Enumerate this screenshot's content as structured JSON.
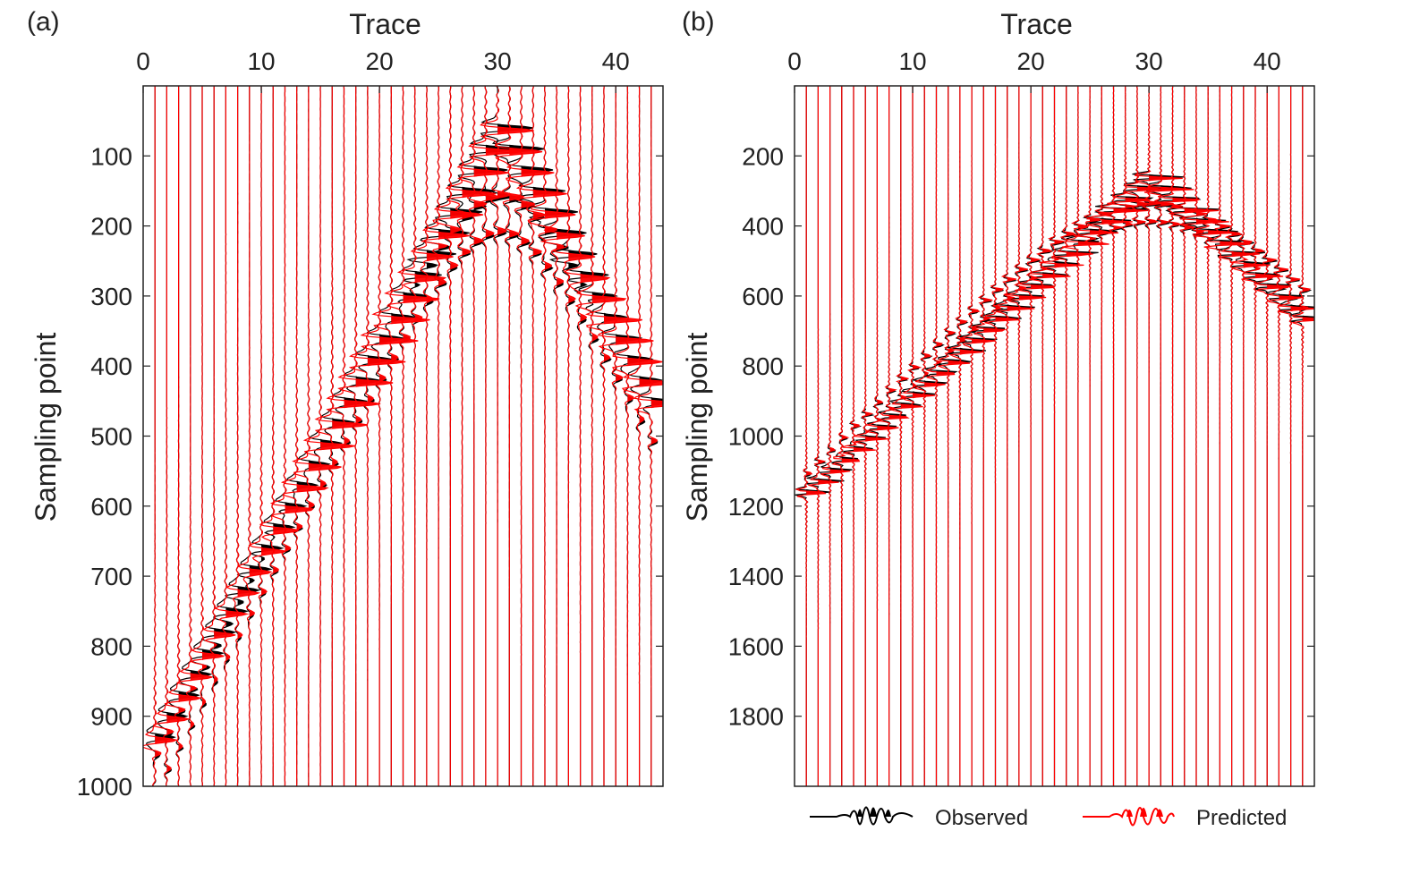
{
  "chart_data": [
    {
      "type": "seismic-wiggle",
      "panel_label": "(a)",
      "xlabel": "Trace",
      "ylabel": "Sampling point",
      "xlim": [
        0,
        44
      ],
      "ylim": [
        0,
        1000
      ],
      "y_reversed": true,
      "x_axis_position": "top",
      "xticks": [
        0,
        10,
        20,
        30,
        40
      ],
      "yticks": [
        100,
        200,
        300,
        400,
        500,
        600,
        700,
        800,
        900,
        1000
      ],
      "traces": [
        1,
        2,
        3,
        4,
        5,
        6,
        7,
        8,
        9,
        10,
        11,
        12,
        13,
        14,
        15,
        16,
        17,
        18,
        19,
        20,
        21,
        22,
        23,
        24,
        25,
        26,
        27,
        28,
        29,
        30,
        31,
        32,
        33,
        34,
        35,
        36,
        37,
        38,
        39,
        40,
        41,
        42,
        43
      ],
      "source_trace": 30,
      "first_arrival_apex_sample": 60,
      "first_arrival_slope": 30,
      "reflection_apex_sample": 140,
      "reflection_slope": 32,
      "series": [
        {
          "name": "Observed",
          "color": "#000000"
        },
        {
          "name": "Predicted",
          "color": "#ff0000"
        }
      ]
    },
    {
      "type": "seismic-wiggle",
      "panel_label": "(b)",
      "xlabel": "Trace",
      "ylabel": "Sampling point",
      "xlim": [
        0,
        44
      ],
      "ylim": [
        0,
        2000
      ],
      "y_reversed": true,
      "x_axis_position": "top",
      "xticks": [
        0,
        10,
        20,
        30,
        40
      ],
      "yticks": [
        200,
        400,
        600,
        800,
        1000,
        1200,
        1400,
        1600,
        1800
      ],
      "traces": [
        1,
        2,
        3,
        4,
        5,
        6,
        7,
        8,
        9,
        10,
        11,
        12,
        13,
        14,
        15,
        16,
        17,
        18,
        19,
        20,
        21,
        22,
        23,
        24,
        25,
        26,
        27,
        28,
        29,
        30,
        31,
        32,
        33,
        34,
        35,
        36,
        37,
        38,
        39,
        40,
        41,
        42,
        43
      ],
      "source_trace": 30,
      "first_arrival_apex_sample": 260,
      "first_arrival_slope": 31,
      "reflection_apex_sample": 320,
      "reflection_slope": 36,
      "series": [
        {
          "name": "Observed",
          "color": "#000000"
        },
        {
          "name": "Predicted",
          "color": "#ff0000"
        }
      ]
    }
  ],
  "legend": {
    "observed_label": "Observed",
    "predicted_label": "Predicted",
    "observed_color": "#000000",
    "predicted_color": "#ff0000"
  }
}
